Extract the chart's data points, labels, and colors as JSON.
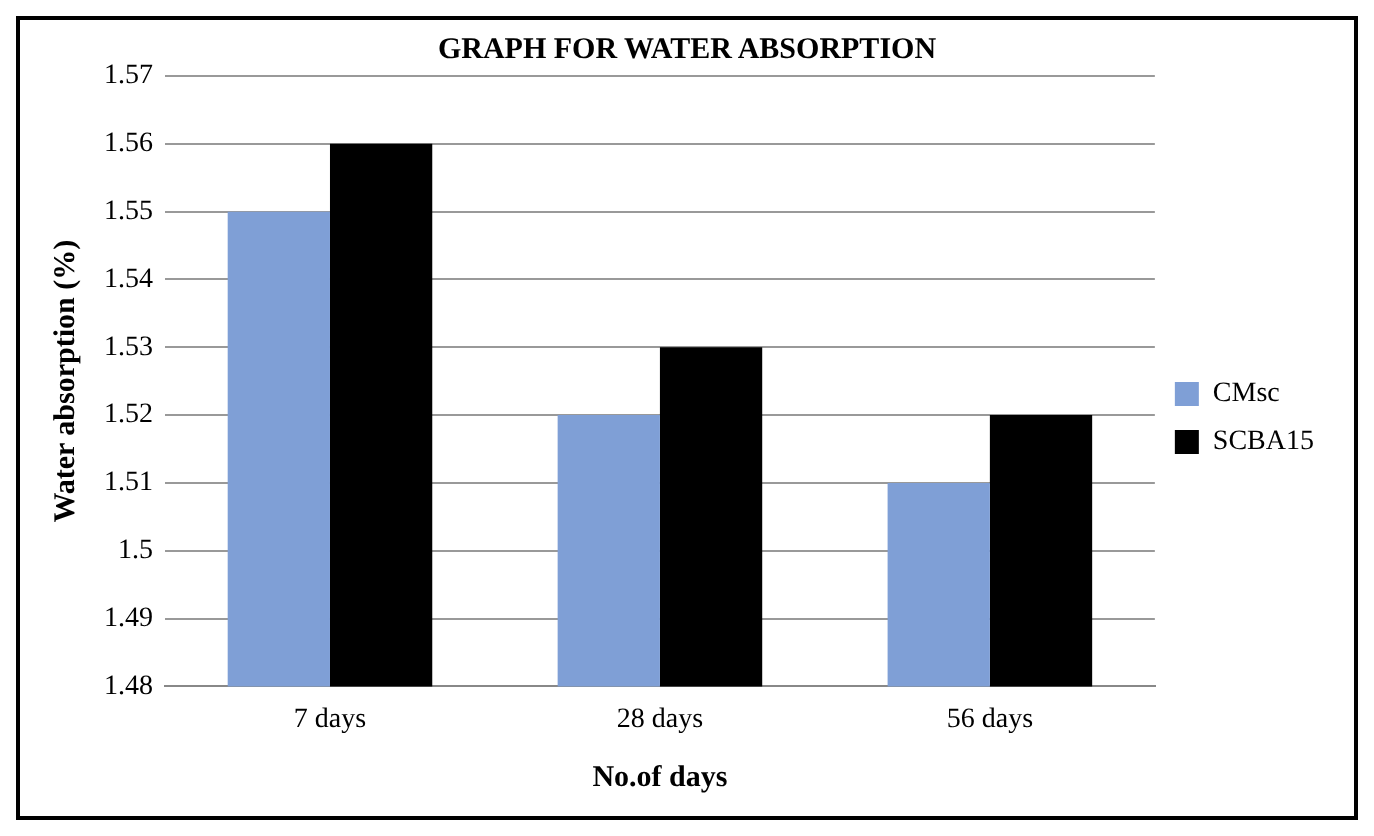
{
  "chart_data": {
    "type": "bar",
    "title": "GRAPH FOR WATER ABSORPTION",
    "xlabel": "No.of days",
    "ylabel": "Water absorption (%)",
    "categories": [
      "7 days",
      "28 days",
      "56 days"
    ],
    "series": [
      {
        "name": "CMsc",
        "color": "#7f9fd6",
        "values": [
          1.55,
          1.52,
          1.51
        ]
      },
      {
        "name": "SCBA15",
        "color": "#000000",
        "values": [
          1.56,
          1.53,
          1.52
        ]
      }
    ],
    "ylim": [
      1.48,
      1.57
    ],
    "yticks": [
      1.48,
      1.49,
      1.5,
      1.51,
      1.52,
      1.53,
      1.54,
      1.55,
      1.56,
      1.57
    ],
    "grid": "y",
    "legend": "right"
  }
}
